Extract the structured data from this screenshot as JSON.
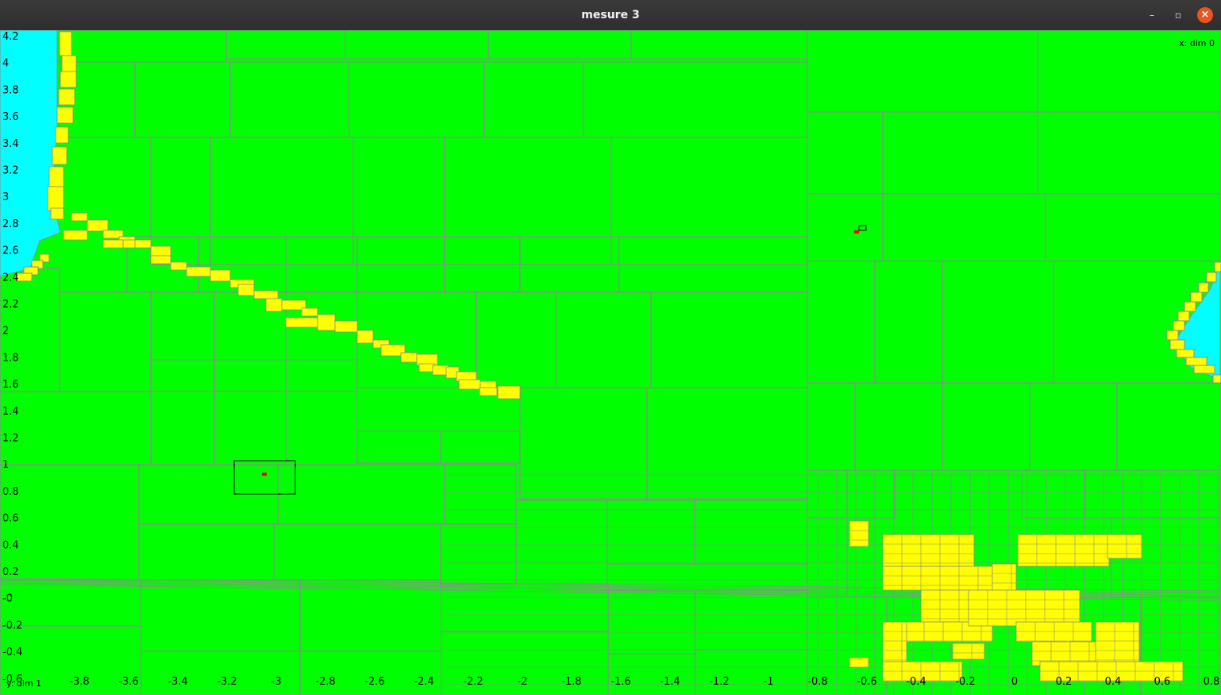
{
  "window": {
    "title": "mesure 3"
  },
  "controls": {
    "minimize": "–",
    "maximize": "▫",
    "close": "×"
  },
  "plot": {
    "x_label": "x: dim 0",
    "y_label": "y: dim 1",
    "x_ticks": [
      "-3.8",
      "-3.6",
      "-3.4",
      "-3.2",
      "-3",
      "-2.8",
      "-2.6",
      "-2.4",
      "-2.2",
      "-2",
      "-1.8",
      "-1.6",
      "-1.4",
      "-1.2",
      "-1",
      "-0.8",
      "-0.6",
      "-0.4",
      "-0.2",
      "0",
      "0.2",
      "0.4",
      "0.6",
      "0.8"
    ],
    "y_ticks": [
      "4.2",
      "4",
      "3.8",
      "3.6",
      "3.4",
      "3.2",
      "3",
      "2.8",
      "2.6",
      "2.4",
      "2.2",
      "2",
      "1.8",
      "1.6",
      "1.4",
      "1.2",
      "1",
      "0.8",
      "0.6",
      "0.4",
      "0.2",
      "-0",
      "-0.2",
      "-0.4",
      "-0.6"
    ],
    "colors": {
      "background": "#00ff00",
      "grid": "#8c8c8c",
      "yellow": "#ffff00",
      "cyan": "#00ffff",
      "marker": "#ff0000"
    }
  }
}
